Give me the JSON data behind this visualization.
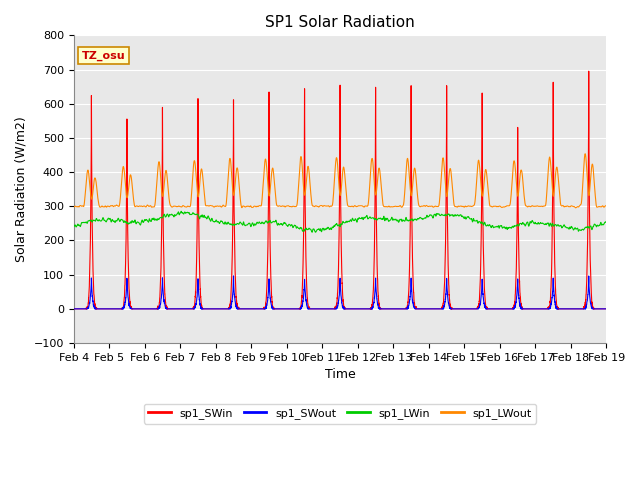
{
  "title": "SP1 Solar Radiation",
  "ylabel": "Solar Radiation (W/m2)",
  "xlabel": "Time",
  "ylim": [
    -100,
    800
  ],
  "yticks": [
    -100,
    0,
    100,
    200,
    300,
    400,
    500,
    600,
    700,
    800
  ],
  "xtick_labels": [
    "Feb 4",
    "Feb 5",
    "Feb 6",
    "Feb 7",
    "Feb 8",
    "Feb 9",
    "Feb 10",
    "Feb 11",
    "Feb 12",
    "Feb 13",
    "Feb 14",
    "Feb 15",
    "Feb 16",
    "Feb 17",
    "Feb 18",
    "Feb 19"
  ],
  "colors": {
    "SWin": "#ff0000",
    "SWout": "#0000ff",
    "LWin": "#00cc00",
    "LWout": "#ff8800"
  },
  "legend_labels": [
    "sp1_SWin",
    "sp1_SWout",
    "sp1_LWin",
    "sp1_LWout"
  ],
  "tz_label": "TZ_osu",
  "fig_facecolor": "#ffffff",
  "plot_facecolor": "#e8e8e8",
  "grid_color": "#ffffff",
  "title_fontsize": 11,
  "axis_fontsize": 9,
  "tick_fontsize": 8
}
